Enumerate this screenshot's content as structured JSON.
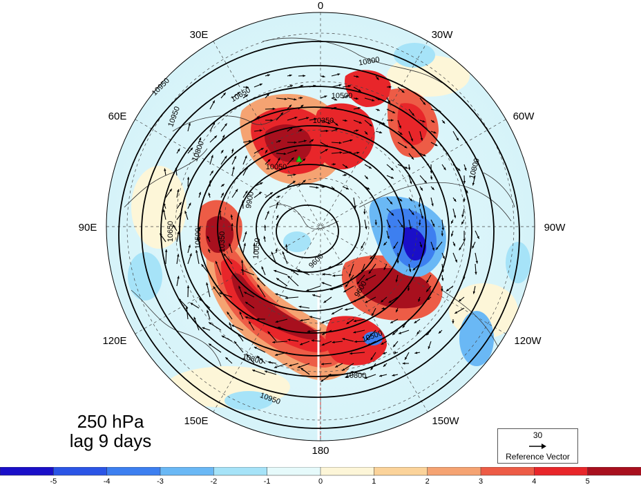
{
  "title": {
    "level": "250 hPa",
    "lag": "lag 9 days"
  },
  "longitude_labels": {
    "top": "0",
    "top_left": "30E",
    "top_right": "30W",
    "upper_left": "60E",
    "upper_right": "60W",
    "left": "90E",
    "right": "90W",
    "lower_left": "120E",
    "lower_right": "120W",
    "bottom_left": "150E",
    "bottom_right": "150W",
    "bottom": "180"
  },
  "contour_labels": [
    "10950",
    "10800",
    "10650",
    "10500",
    "10350",
    "10050",
    "9900",
    "9600",
    "10950",
    "10800",
    "10650",
    "10500",
    "10350",
    "10050",
    "10800",
    "10950",
    "10800",
    "10500",
    "9600",
    "10800"
  ],
  "reference_vector": {
    "magnitude": "30",
    "label": "Reference Vector"
  },
  "colorbar": {
    "tick_labels": [
      "-5",
      "-4",
      "-3",
      "-2",
      "-1",
      "0",
      "1",
      "2",
      "3",
      "4",
      "5"
    ],
    "colors": [
      "#1a0fc8",
      "#2b55e6",
      "#3d7ff0",
      "#6ab8f5",
      "#a6e3f8",
      "#e6fafb",
      "#fdf6d8",
      "#fbd39a",
      "#f5a372",
      "#ed5c46",
      "#e8262a",
      "#a8101e"
    ]
  },
  "marker_color": "#22cc22"
}
